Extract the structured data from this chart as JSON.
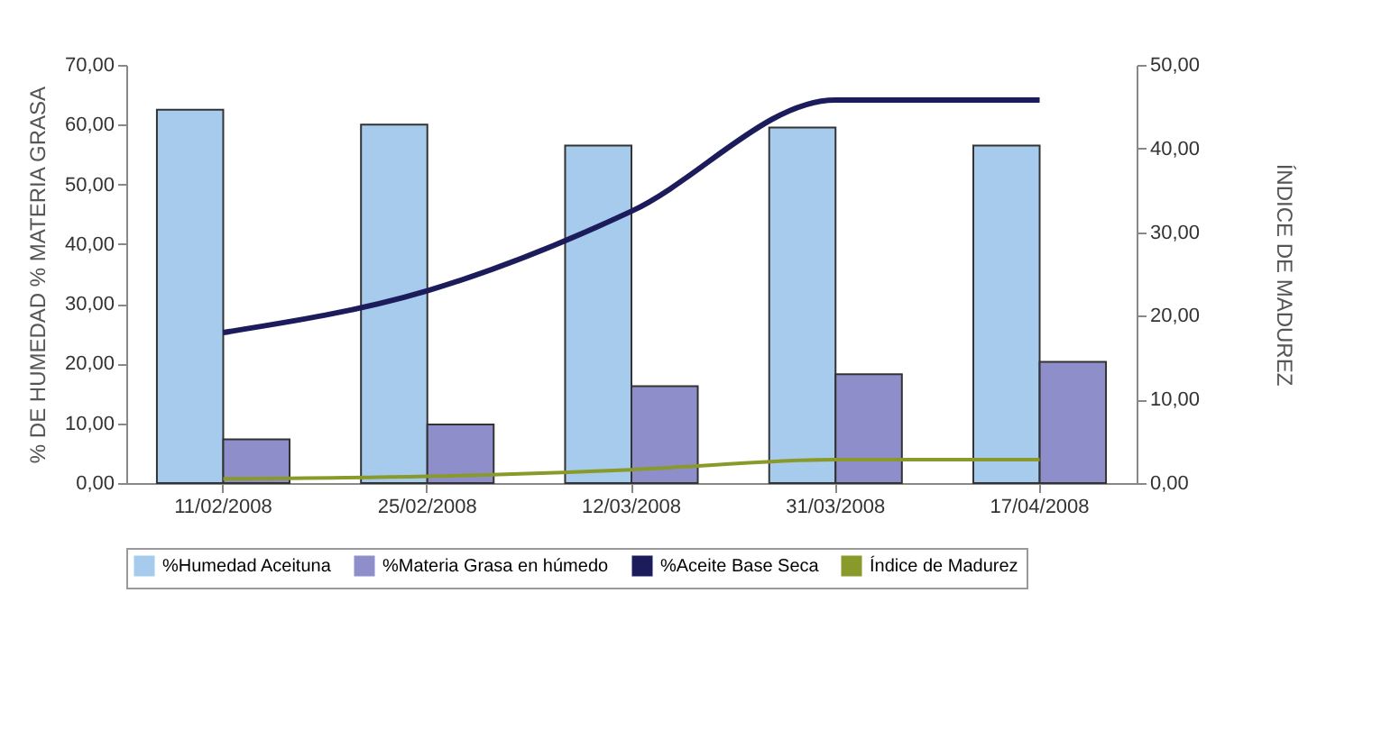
{
  "chart_data": {
    "type": "bar",
    "categories": [
      "11/02/2008",
      "25/02/2008",
      "12/03/2008",
      "31/03/2008",
      "17/04/2008"
    ],
    "ylabel": "% DE HUMEDAD % MATERIA GRASA",
    "y2label": "ÍNDICE DE MADUREZ",
    "series": [
      {
        "name": "%Humedad Aceituna",
        "color": "#a6cbec",
        "values": [
          62.5,
          60,
          56.5,
          59.5,
          56.5
        ]
      },
      {
        "name": "%Materia Grasa en húmedo",
        "color": "#8e8ecb",
        "values": [
          7.3,
          9.8,
          16.2,
          18.2,
          20.3
        ]
      },
      {
        "name": "%Aceite Base Seca",
        "type": "line",
        "axis": "y2",
        "color": "#1c1c5c",
        "values": [
          18,
          23,
          32.5,
          45.8,
          45.8
        ]
      },
      {
        "name": "Índice de Madurez",
        "type": "line",
        "axis": "y2",
        "color": "#8a9a2a",
        "values": [
          0.5,
          0.8,
          1.6,
          2.8,
          2.8
        ]
      }
    ],
    "ylim": [
      0,
      70
    ],
    "yticks": [
      {
        "value": 0,
        "label": "0,00"
      },
      {
        "value": 10,
        "label": "10,00"
      },
      {
        "value": 20,
        "label": "20,00"
      },
      {
        "value": 30,
        "label": "30,00"
      },
      {
        "value": 40,
        "label": "40,00"
      },
      {
        "value": 50,
        "label": "50,00"
      },
      {
        "value": 60,
        "label": "60,00"
      },
      {
        "value": 70,
        "label": "70,00"
      }
    ],
    "y2lim": [
      0,
      50
    ],
    "y2ticks": [
      {
        "value": 0,
        "label": "0,00"
      },
      {
        "value": 10,
        "label": "10,00"
      },
      {
        "value": 20,
        "label": "20,00"
      },
      {
        "value": 30,
        "label": "30,00"
      },
      {
        "value": 40,
        "label": "40,00"
      },
      {
        "value": 50,
        "label": "50,00"
      }
    ],
    "legend": "bottom",
    "grid": false
  }
}
